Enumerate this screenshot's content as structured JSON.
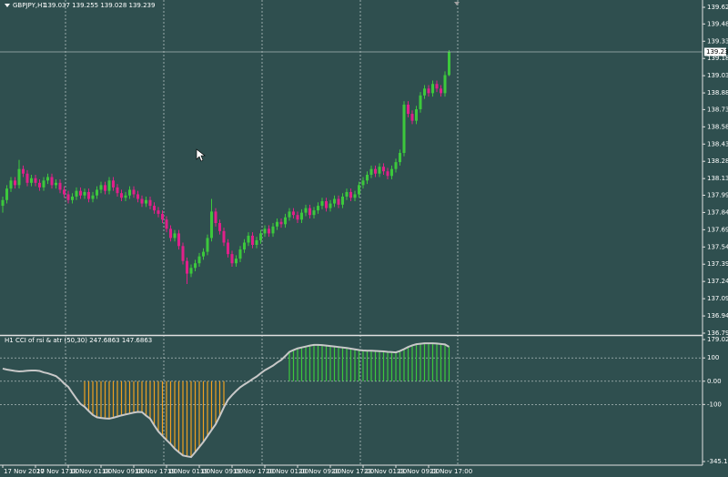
{
  "chart_data": {
    "type": "candlestick",
    "symbol": "GBPJPY,H1",
    "ohlc": "139.037 139.255 139.028 139.239",
    "bull_color": "#3cc83c",
    "bear_color": "#e0208a",
    "categories": [
      "17 Nov 2020",
      null,
      null,
      null,
      null,
      null,
      null,
      null,
      "17 Nov 17:00",
      null,
      null,
      null,
      null,
      null,
      null,
      null,
      "18 Nov 01:00",
      null,
      null,
      null,
      null,
      null,
      null,
      null,
      "18 Nov 09:00",
      null,
      null,
      null,
      null,
      null,
      null,
      null,
      "18 Nov 17:00",
      null,
      null,
      null,
      null,
      null,
      null,
      null,
      "19 Nov 01:00",
      null,
      null,
      null,
      null,
      null,
      null,
      null,
      "19 Nov 09:00",
      null,
      null,
      null,
      null,
      null,
      null,
      null,
      "19 Nov 17:00",
      null,
      null,
      null,
      null,
      null,
      null,
      null,
      "20 Nov 01:00",
      null,
      null,
      null,
      null,
      null,
      null,
      null,
      "20 Nov 09:00",
      null,
      null,
      null,
      null,
      null,
      null,
      null,
      "20 Nov 17:00",
      null,
      null,
      null,
      null,
      null,
      null,
      null,
      "23 Nov 01:00",
      null,
      null,
      null,
      null,
      null,
      null,
      null,
      "23 Nov 09:00",
      null,
      null,
      null,
      null,
      null,
      null,
      null,
      "23 Nov 17:00",
      null,
      null,
      null,
      null,
      null
    ],
    "open": [
      137.9,
      137.95,
      138.05,
      138.12,
      138.08,
      138.22,
      138.18,
      138.1,
      138.14,
      138.1,
      138.06,
      138.12,
      138.15,
      138.08,
      138.1,
      138.04,
      138.0,
      137.95,
      137.98,
      138.03,
      137.99,
      138.02,
      137.96,
      137.99,
      138.04,
      138.08,
      138.03,
      138.12,
      138.06,
      138.01,
      137.97,
      137.99,
      138.04,
      138.0,
      137.96,
      137.92,
      137.95,
      137.9,
      137.86,
      137.83,
      137.78,
      137.7,
      137.62,
      137.66,
      137.55,
      137.42,
      137.31,
      137.36,
      137.4,
      137.46,
      137.5,
      137.62,
      137.85,
      137.75,
      137.68,
      137.58,
      137.48,
      137.4,
      137.44,
      137.52,
      137.58,
      137.64,
      137.56,
      137.6,
      137.66,
      137.7,
      137.66,
      137.72,
      137.76,
      137.74,
      137.8,
      137.85,
      137.82,
      137.78,
      137.84,
      137.88,
      137.82,
      137.86,
      137.9,
      137.94,
      137.88,
      137.92,
      137.96,
      137.91,
      137.98,
      138.02,
      137.97,
      138.0,
      138.08,
      138.12,
      138.17,
      138.22,
      138.18,
      138.24,
      138.2,
      138.16,
      138.22,
      138.28,
      138.36,
      138.78,
      138.7,
      138.64,
      138.74,
      138.86,
      138.92,
      138.88,
      138.96,
      138.92,
      138.88,
      139.037
    ],
    "high": [
      137.98,
      138.08,
      138.15,
      138.15,
      138.3,
      138.25,
      138.21,
      138.17,
      138.17,
      138.13,
      138.15,
      138.18,
      138.18,
      138.13,
      138.13,
      138.07,
      138.03,
      138.01,
      138.06,
      138.06,
      138.05,
      138.05,
      138.02,
      138.07,
      138.11,
      138.11,
      138.15,
      138.15,
      138.09,
      138.04,
      138.02,
      138.07,
      138.07,
      138.03,
      137.99,
      137.98,
      137.98,
      137.93,
      137.89,
      137.86,
      137.81,
      137.73,
      137.69,
      137.69,
      137.58,
      137.45,
      137.39,
      137.43,
      137.49,
      137.53,
      137.65,
      137.96,
      137.88,
      137.78,
      137.71,
      137.61,
      137.51,
      137.47,
      137.55,
      137.61,
      137.67,
      137.67,
      137.63,
      137.69,
      137.73,
      137.73,
      137.75,
      137.79,
      137.79,
      137.83,
      137.88,
      137.88,
      137.85,
      137.87,
      137.91,
      137.91,
      137.89,
      137.93,
      137.97,
      137.97,
      137.95,
      137.99,
      137.99,
      138.01,
      138.05,
      138.05,
      138.03,
      138.11,
      138.15,
      138.2,
      138.25,
      138.25,
      138.27,
      138.27,
      138.23,
      138.25,
      138.31,
      138.39,
      138.81,
      138.81,
      138.73,
      138.77,
      138.89,
      138.95,
      138.95,
      138.99,
      138.99,
      138.95,
      139.07,
      139.255
    ],
    "low": [
      137.84,
      137.92,
      138.02,
      138.05,
      138.05,
      138.15,
      138.07,
      138.07,
      138.07,
      138.03,
      138.03,
      138.09,
      138.05,
      138.05,
      138.01,
      137.97,
      137.92,
      137.92,
      137.95,
      137.96,
      137.96,
      137.93,
      137.93,
      137.96,
      138.01,
      138.0,
      138.0,
      138.03,
      137.98,
      137.94,
      137.94,
      137.96,
      137.97,
      137.93,
      137.89,
      137.89,
      137.87,
      137.83,
      137.8,
      137.75,
      137.67,
      137.59,
      137.59,
      137.52,
      137.39,
      137.22,
      137.28,
      137.33,
      137.37,
      137.43,
      137.47,
      137.59,
      137.72,
      137.65,
      137.55,
      137.45,
      137.37,
      137.37,
      137.41,
      137.49,
      137.55,
      137.53,
      137.53,
      137.57,
      137.63,
      137.63,
      137.63,
      137.69,
      137.71,
      137.71,
      137.77,
      137.79,
      137.75,
      137.75,
      137.81,
      137.79,
      137.79,
      137.83,
      137.87,
      137.85,
      137.85,
      137.89,
      137.88,
      137.88,
      137.95,
      137.94,
      137.94,
      137.97,
      138.05,
      138.09,
      138.14,
      138.15,
      138.15,
      138.17,
      138.13,
      138.13,
      138.19,
      138.25,
      138.33,
      138.67,
      138.61,
      138.61,
      138.71,
      138.83,
      138.85,
      138.85,
      138.89,
      138.85,
      138.85,
      139.028
    ],
    "close": [
      137.95,
      138.05,
      138.12,
      138.08,
      138.22,
      138.18,
      138.1,
      138.14,
      138.1,
      138.06,
      138.12,
      138.15,
      138.08,
      138.1,
      138.04,
      138.0,
      137.95,
      137.98,
      138.03,
      137.99,
      138.02,
      137.96,
      137.99,
      138.04,
      138.08,
      138.03,
      138.12,
      138.06,
      138.01,
      137.97,
      137.99,
      138.04,
      138.0,
      137.96,
      137.92,
      137.95,
      137.9,
      137.86,
      137.83,
      137.78,
      137.7,
      137.62,
      137.66,
      137.55,
      137.42,
      137.31,
      137.36,
      137.4,
      137.46,
      137.5,
      137.62,
      137.85,
      137.75,
      137.68,
      137.58,
      137.48,
      137.4,
      137.44,
      137.52,
      137.58,
      137.64,
      137.56,
      137.6,
      137.66,
      137.7,
      137.66,
      137.72,
      137.76,
      137.74,
      137.8,
      137.85,
      137.82,
      137.78,
      137.84,
      137.88,
      137.82,
      137.86,
      137.9,
      137.94,
      137.88,
      137.92,
      137.96,
      137.91,
      137.98,
      138.02,
      137.97,
      138.0,
      138.08,
      138.12,
      138.17,
      138.22,
      138.18,
      138.24,
      138.2,
      138.16,
      138.22,
      138.28,
      138.36,
      138.78,
      138.7,
      138.64,
      138.74,
      138.86,
      138.92,
      138.88,
      138.96,
      138.92,
      138.88,
      139.037,
      139.239
    ],
    "ylim": [
      136.792,
      139.627
    ],
    "yticks": [
      139.627,
      139.482,
      139.332,
      139.182,
      139.032,
      138.882,
      138.737,
      138.587,
      138.437,
      138.287,
      138.137,
      137.992,
      137.842,
      137.692,
      137.542,
      137.392,
      137.242,
      137.092,
      136.942,
      136.792
    ],
    "indicator": {
      "type": "line",
      "label": "H1 CCI of rsi & atr (50,30) 247.6863 147.6863",
      "color": "#c8c8c8",
      "values": [
        54,
        50,
        47,
        44,
        42,
        43,
        45,
        46,
        46,
        44,
        38,
        34,
        28,
        22,
        8,
        -10,
        -24,
        -50,
        -75,
        -98,
        -110,
        -128,
        -145,
        -155,
        -158,
        -160,
        -161,
        -157,
        -152,
        -147,
        -143,
        -139,
        -135,
        -132,
        -133,
        -148,
        -161,
        -190,
        -216,
        -235,
        -253,
        -270,
        -290,
        -305,
        -319,
        -323,
        -326,
        -305,
        -283,
        -261,
        -236,
        -210,
        -185,
        -150,
        -112,
        -80,
        -60,
        -42,
        -26,
        -14,
        -3,
        9,
        20,
        34,
        47,
        57,
        67,
        80,
        91,
        108,
        126,
        134,
        141,
        145,
        149,
        153,
        156,
        156,
        155,
        153,
        151,
        149,
        147,
        145,
        143,
        140,
        137,
        134,
        132,
        131,
        131,
        130,
        129,
        128,
        126,
        125,
        124,
        130,
        138,
        147,
        154,
        159,
        161,
        163,
        163,
        163,
        162,
        160,
        158,
        147.6863
      ],
      "hist_neg_color": "#f0a020",
      "hist_pos_color": "#3cc83c",
      "hist_neg": [
        null,
        null,
        null,
        null,
        null,
        null,
        null,
        null,
        null,
        null,
        null,
        null,
        null,
        null,
        null,
        null,
        null,
        null,
        null,
        null,
        -110,
        -128,
        -145,
        -155,
        -158,
        -160,
        -161,
        -157,
        -152,
        -147,
        -143,
        -139,
        -135,
        -132,
        -133,
        -148,
        -161,
        -190,
        -216,
        -235,
        -253,
        -270,
        -290,
        -305,
        -319,
        -323,
        -326,
        -305,
        -283,
        -261,
        -236,
        -210,
        -185,
        -150,
        -112,
        null,
        null,
        null,
        null,
        null,
        null,
        null,
        null,
        null,
        null,
        null,
        null,
        null,
        null,
        null,
        null,
        null,
        null,
        null,
        null,
        null,
        null,
        null,
        null,
        null,
        null,
        null,
        null,
        null,
        null,
        null,
        null,
        null,
        null,
        null,
        null,
        null,
        null,
        null,
        null,
        null,
        null,
        null,
        null,
        null,
        null,
        null,
        null,
        null,
        null,
        null,
        null,
        null,
        null,
        null
      ],
      "hist_pos": [
        null,
        null,
        null,
        null,
        null,
        null,
        null,
        null,
        null,
        null,
        null,
        null,
        null,
        null,
        null,
        null,
        null,
        null,
        null,
        null,
        null,
        null,
        null,
        null,
        null,
        null,
        null,
        null,
        null,
        null,
        null,
        null,
        null,
        null,
        null,
        null,
        null,
        null,
        null,
        null,
        null,
        null,
        null,
        null,
        null,
        null,
        null,
        null,
        null,
        null,
        null,
        null,
        null,
        null,
        null,
        null,
        null,
        null,
        null,
        null,
        null,
        null,
        null,
        null,
        null,
        null,
        null,
        null,
        null,
        null,
        126,
        134,
        141,
        145,
        149,
        153,
        156,
        156,
        155,
        153,
        151,
        149,
        147,
        145,
        143,
        140,
        137,
        134,
        132,
        131,
        131,
        130,
        129,
        128,
        126,
        125,
        124,
        130,
        138,
        147,
        154,
        159,
        161,
        163,
        163,
        163,
        162,
        160,
        158,
        147.6863
      ],
      "ylim": [
        -345.1793,
        179.0264
      ],
      "yticks": [
        179.0264,
        100,
        {
          "value": 0,
          "label": "0.00"
        },
        -100,
        -345.1793
      ]
    }
  }
}
